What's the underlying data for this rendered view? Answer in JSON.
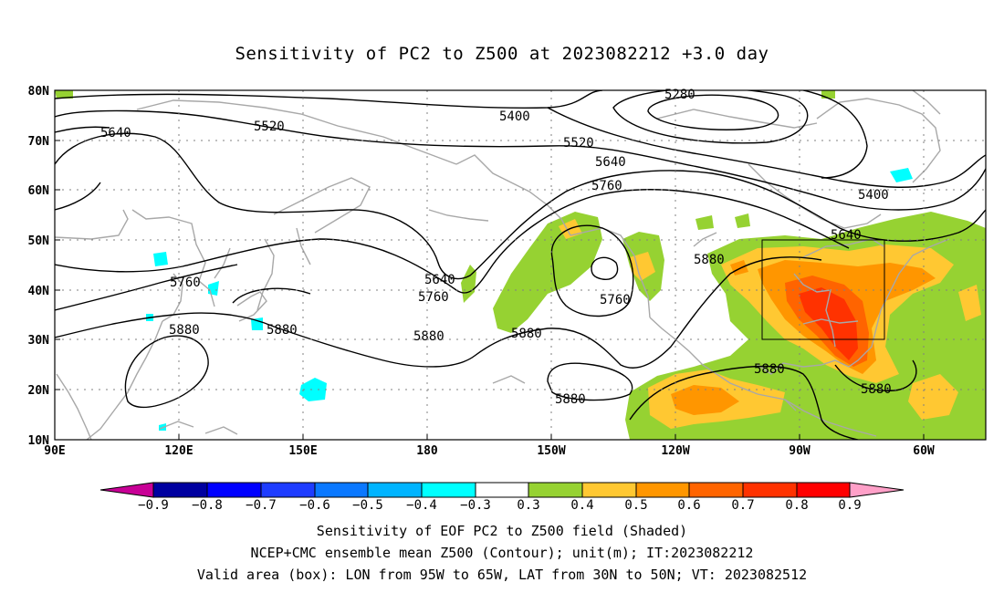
{
  "title": "Sensitivity of PC2 to Z500 at 2023082212 +3.0 day",
  "map": {
    "lat_labels": [
      "80N",
      "70N",
      "60N",
      "50N",
      "40N",
      "30N",
      "20N",
      "10N"
    ],
    "lon_labels": [
      "90E",
      "120E",
      "150E",
      "180",
      "150W",
      "120W",
      "90W",
      "60W"
    ],
    "region": {
      "lon": [
        90,
        315
      ],
      "lat": [
        10,
        80
      ]
    },
    "valid_box": {
      "lon": [
        265,
        295
      ],
      "lat": [
        30,
        50
      ]
    },
    "contour_labels": [
      "5280",
      "5400",
      "5520",
      "5640",
      "5640",
      "5520",
      "5400",
      "5640",
      "5760",
      "5760",
      "5640",
      "5760",
      "5760",
      "5880",
      "5880",
      "5880",
      "5880",
      "5880",
      "5880",
      "5880",
      "5880"
    ]
  },
  "colorbar": {
    "labels": [
      "−0.9",
      "−0.8",
      "−0.7",
      "−0.6",
      "−0.5",
      "−0.4",
      "−0.3",
      "0.3",
      "0.4",
      "0.5",
      "0.6",
      "0.7",
      "0.8",
      "0.9"
    ],
    "colors": {
      "neg_end": "#c80096",
      "neg": [
        "#0000a0",
        "#0000ff",
        "#1e3cff",
        "#0a78ff",
        "#00b4ff",
        "#00ffff"
      ],
      "zero": "#ffffff",
      "pos": [
        "#96d232",
        "#ffc832",
        "#ff9600",
        "#ff6400",
        "#ff3200",
        "#ff0000"
      ],
      "pos_end": "#ffa0c8"
    }
  },
  "captions": [
    "Sensitivity of EOF PC2 to Z500 field (Shaded)",
    "NCEP+CMC ensemble mean Z500 (Contour); unit(m); IT:2023082212",
    "Valid area (box): LON from 95W to 65W, LAT from 30N to 50N; VT: 2023082512"
  ]
}
